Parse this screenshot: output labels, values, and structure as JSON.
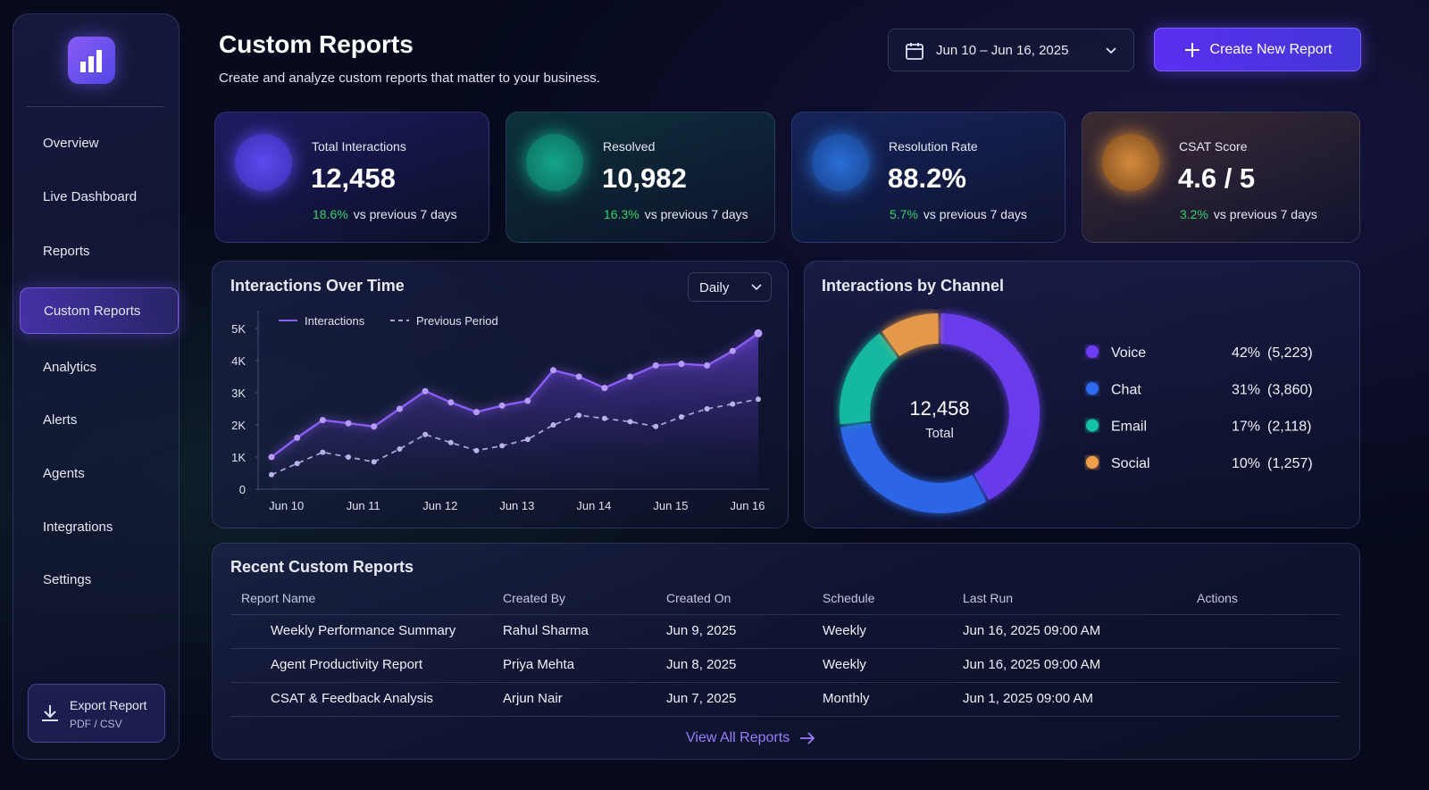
{
  "sidebar": {
    "nav": [
      "Overview",
      "Live Dashboard",
      "Reports",
      "Custom Reports",
      "Analytics",
      "Alerts",
      "Agents",
      "Integrations",
      "Settings"
    ],
    "export": {
      "title": "Export Report",
      "subtitle": "PDF / CSV"
    }
  },
  "header": {
    "title": "Custom Reports",
    "subtitle": "Create and analyze custom reports that matter to your business.",
    "date_range": "Jun 10 – Jun 16, 2025",
    "create_button": "Create New Report"
  },
  "kpis": [
    {
      "label": "Total Interactions",
      "value": "12,458",
      "change": "18.6%",
      "compare": "vs previous 7 days"
    },
    {
      "label": "Resolved",
      "value": "10,982",
      "change": "16.3%",
      "compare": "vs previous 7 days"
    },
    {
      "label": "Resolution Rate",
      "value": "88.2%",
      "change": "5.7%",
      "compare": "vs previous 7 days"
    },
    {
      "label": "CSAT Score",
      "value": "4.6 / 5",
      "change": "3.2%",
      "compare": "vs previous 7 days"
    }
  ],
  "chart_data": [
    {
      "type": "line",
      "title": "Interactions Over Time",
      "period": "Daily",
      "categories": [
        null,
        "Jun 10",
        null,
        null,
        "Jun 11",
        null,
        null,
        "Jun 12",
        null,
        null,
        "Jun 13",
        null,
        null,
        "Jun 14",
        null,
        null,
        "Jun 15",
        null,
        null,
        "Jun 16"
      ],
      "series": [
        {
          "name": "Interactions",
          "color": "#8b5cf6",
          "values": [
            1000,
            1600,
            2150,
            2050,
            1950,
            2500,
            3050,
            2700,
            2400,
            2600,
            2750,
            3700,
            3500,
            3150,
            3500,
            3850,
            3900,
            3850,
            4300,
            4850
          ]
        },
        {
          "name": "Previous Period",
          "color": "#a9a4d6",
          "values": [
            450,
            800,
            1150,
            1000,
            850,
            1250,
            1700,
            1450,
            1200,
            1350,
            1550,
            2000,
            2300,
            2200,
            2100,
            1950,
            2250,
            2500,
            2650,
            2800
          ]
        }
      ],
      "ylim": [
        0,
        5000
      ],
      "yticks": [
        0,
        {
          "value": 1000,
          "label": "1K"
        },
        {
          "value": 2000,
          "label": "2K"
        },
        {
          "value": 3000,
          "label": "3K"
        },
        {
          "value": 4000,
          "label": "4K"
        },
        {
          "value": 5000,
          "label": "5K"
        }
      ]
    },
    {
      "type": "donut",
      "title": "Interactions by Channel",
      "center_label": "12,458",
      "center_sublabel": "Total",
      "categories": [
        "Voice",
        "Chat",
        "Email",
        "Social"
      ],
      "values": [
        42,
        31,
        17,
        10
      ],
      "value_labels": [
        "42%",
        "31%",
        "17%",
        "10%"
      ],
      "counts": [
        5223,
        3860,
        2118,
        1257
      ],
      "count_labels": [
        "(5,223)",
        "(3,860)",
        "(2,118)",
        "(1,257)"
      ],
      "colors": [
        "#6d3cf5",
        "#2f6bf0",
        "#19c2a6",
        "#f0a04b"
      ]
    }
  ],
  "table": {
    "title": "Recent Custom Reports",
    "columns": [
      "Report Name",
      "Created By",
      "Created On",
      "Schedule",
      "Last Run",
      "Actions"
    ],
    "rows": [
      [
        "Weekly Performance Summary",
        "Rahul Sharma",
        "Jun 9, 2025",
        "Weekly",
        "Jun 16, 2025 09:00 AM"
      ],
      [
        "Agent Productivity Report",
        "Priya Mehta",
        "Jun 8, 2025",
        "Weekly",
        "Jun 16, 2025 09:00 AM"
      ],
      [
        "CSAT & Feedback Analysis",
        "Arjun Nair",
        "Jun 7, 2025",
        "Monthly",
        "Jun 1, 2025 09:00 AM"
      ]
    ],
    "link": "View All Reports"
  }
}
